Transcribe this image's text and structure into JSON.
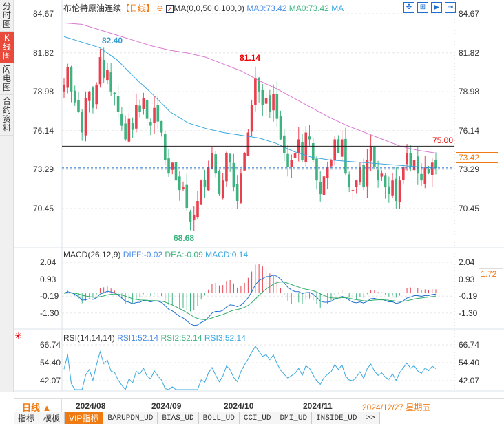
{
  "sidebar": {
    "tabs": [
      "分时图",
      "K线图",
      "闪电图",
      "合约资料"
    ],
    "active": 1
  },
  "header": {
    "title": "布伦特原油连续",
    "period": "【日线】",
    "ma_label": "MA(0,0,50,0,100,0)",
    "ma1": "MA0:73.42",
    "ma2": "MA0:73.42",
    "ma3": "MA"
  },
  "price_axis": {
    "labels": [
      "84.67",
      "81.82",
      "78.98",
      "76.14",
      "73.29",
      "70.45"
    ],
    "current": "73.42",
    "line_label": "75.00",
    "high1": "82.40",
    "high2": "81.14",
    "low1": "68.68"
  },
  "macd": {
    "title": "MACD(26,12,9)",
    "diff": "DIFF:-0.02",
    "dea": "DEA:-0.09",
    "macd": "MACD:0.14",
    "labels": [
      "2.04",
      "0.93",
      "-0.19",
      "-1.30"
    ],
    "current": "1.72"
  },
  "rsi": {
    "title": "RSI(14,14,14)",
    "rsi1": "RSI1:52.14",
    "rsi2": "RSI2:52.14",
    "rsi3": "RSI3:52.14",
    "labels": [
      "66.74",
      "54.40",
      "42.07"
    ]
  },
  "timeaxis": {
    "period": "日线 ▲",
    "months": [
      "2024/08",
      "2024/09",
      "2024/10",
      "2024/11"
    ],
    "cursor_date": "2024/12/27 星期五"
  },
  "bottom_tabs": [
    "指标",
    "模板",
    "VIP指标",
    "BARUPDN_UD",
    "BIAS_UD",
    "BOLL_UD",
    "CCI_UD",
    "DMI_UD",
    "INSIDE_UD",
    ">>"
  ],
  "colors": {
    "up": "#e8404f",
    "down": "#3fb37f",
    "ma50": "#38a8e0",
    "ma100": "#d977d0",
    "accent": "#f07a12"
  },
  "chart_data": {
    "type": "candlestick",
    "ylim": [
      68,
      85
    ],
    "hline": 75.0,
    "closes": [
      79.5,
      80.8,
      79.0,
      78.2,
      77.5,
      76.0,
      78.5,
      79.0,
      77.8,
      79.5,
      81.5,
      80.0,
      80.6,
      79.0,
      78.8,
      77.5,
      76.5,
      75.5,
      77.0,
      76.2,
      78.0,
      77.5,
      78.5,
      77.0,
      76.5,
      77.8,
      76.8,
      76.0,
      74.0,
      73.0,
      73.8,
      72.5,
      71.8,
      72.0,
      70.5,
      69.5,
      70.0,
      71.0,
      72.5,
      72.0,
      73.5,
      74.5,
      73.0,
      71.5,
      72.5,
      74.5,
      73.8,
      72.0,
      71.0,
      73.0,
      74.5,
      76.0,
      78.0,
      80.0,
      79.0,
      78.0,
      78.5,
      77.5,
      78.8,
      77.0,
      75.5,
      74.5,
      73.5,
      74.0,
      74.5,
      75.5,
      74.0,
      76.0,
      75.5,
      74.0,
      72.5,
      71.5,
      72.8,
      73.5,
      74.0,
      75.5,
      74.5,
      75.5,
      73.0,
      72.0,
      71.8,
      72.5,
      73.5,
      72.0,
      74.0,
      75.0,
      73.5,
      72.5,
      73.0,
      72.0,
      71.5,
      72.5,
      71.0,
      72.5,
      73.5,
      74.5,
      73.5,
      74.0,
      73.0,
      72.5,
      73.5,
      73.0,
      73.8,
      73.42
    ],
    "ma50": [
      83.0,
      82.6,
      82.2,
      81.3,
      80.0,
      78.8,
      77.5,
      76.7,
      76.3,
      76.0,
      75.8,
      75.6,
      75.2,
      74.6,
      74.2,
      74.0,
      73.9,
      73.8,
      73.7,
      73.6,
      73.5,
      73.4
    ],
    "ma100": [
      84.0,
      83.9,
      83.5,
      83.1,
      82.7,
      82.3,
      82.0,
      81.8,
      81.5,
      81.0,
      80.5,
      79.8,
      79.2,
      78.5,
      77.8,
      77.1,
      76.5,
      76.0,
      75.5,
      75.0,
      74.7,
      74.5
    ]
  }
}
